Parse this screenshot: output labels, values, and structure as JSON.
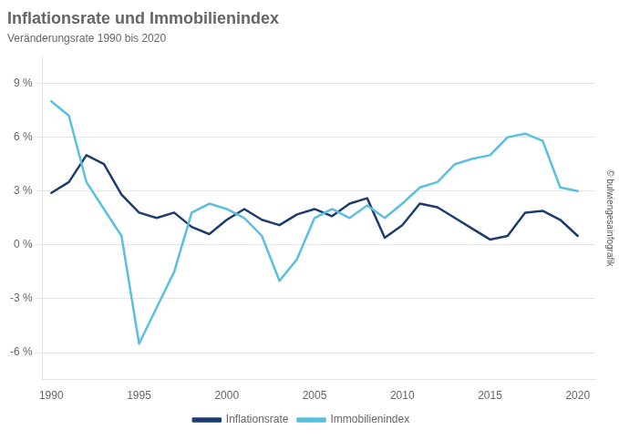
{
  "chart_data": {
    "type": "line",
    "title": "Inflationsrate und Immobilienindex",
    "subtitle": "Veränderungsrate 1990 bis 2020",
    "x": [
      1990,
      1991,
      1992,
      1993,
      1994,
      1995,
      1996,
      1997,
      1998,
      1999,
      2000,
      2001,
      2002,
      2003,
      2004,
      2005,
      2006,
      2007,
      2008,
      2009,
      2010,
      2011,
      2012,
      2013,
      2014,
      2015,
      2016,
      2017,
      2018,
      2019,
      2020
    ],
    "series": [
      {
        "name": "Immobilienindex",
        "color": "#5bbfdf",
        "values": [
          8.0,
          7.2,
          3.5,
          2.0,
          0.5,
          -5.5,
          -3.5,
          -1.5,
          1.8,
          2.3,
          2.0,
          1.5,
          0.5,
          -2.0,
          -0.8,
          1.5,
          2.0,
          1.5,
          2.2,
          1.5,
          2.3,
          3.2,
          3.5,
          4.5,
          4.8,
          5.0,
          6.0,
          6.2,
          5.8,
          3.2,
          3.0
        ]
      },
      {
        "name": "Inflationsrate",
        "color": "#1c3d6e",
        "values": [
          2.9,
          3.5,
          5.0,
          4.5,
          2.8,
          1.8,
          1.5,
          1.8,
          1.0,
          0.6,
          1.4,
          2.0,
          1.4,
          1.1,
          1.7,
          2.0,
          1.6,
          2.3,
          2.6,
          0.4,
          1.1,
          2.3,
          2.1,
          1.5,
          0.9,
          0.3,
          0.5,
          1.8,
          1.9,
          1.4,
          0.5
        ]
      }
    ],
    "xlim": [
      1989.5,
      2021.0
    ],
    "xticks": [
      1990,
      1995,
      2000,
      2005,
      2010,
      2015,
      2020
    ],
    "ylim": [
      -7.5,
      10.5
    ],
    "yticks": [
      {
        "value": -6,
        "label": "-6 %"
      },
      {
        "value": -3,
        "label": "-3 %"
      },
      {
        "value": 0,
        "label": "0 %"
      },
      {
        "value": 3,
        "label": "3 %"
      },
      {
        "value": 6,
        "label": "6 %"
      },
      {
        "value": 9,
        "label": "9 %"
      }
    ],
    "grid": "y",
    "legend": "bottom",
    "annotations": [
      "© bulwiengesainfografik"
    ]
  }
}
